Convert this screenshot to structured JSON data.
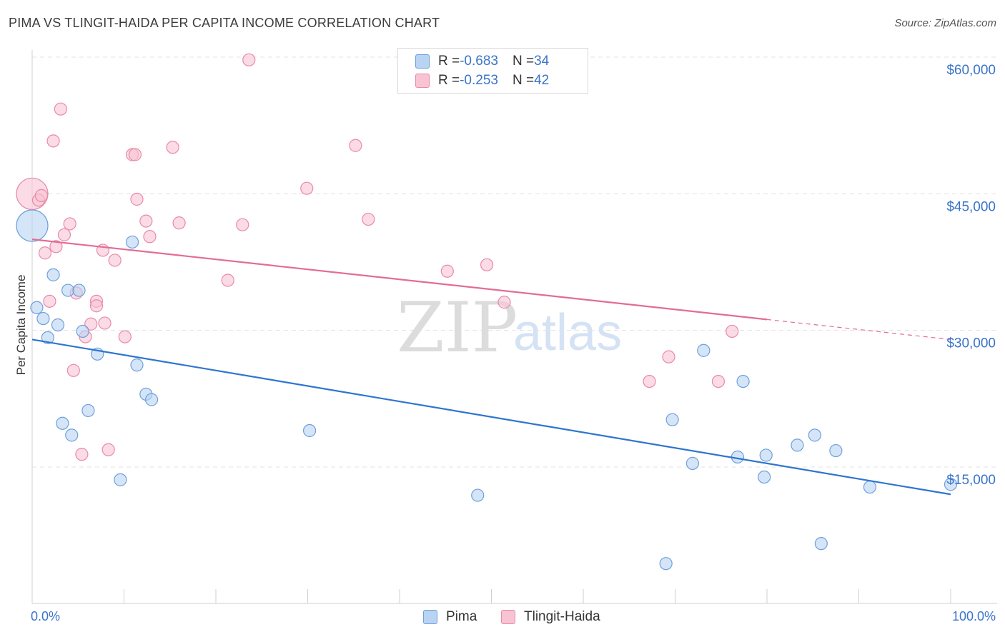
{
  "header": {
    "title": "PIMA VS TLINGIT-HAIDA PER CAPITA INCOME CORRELATION CHART",
    "source": "Source: ZipAtlas.com"
  },
  "legend": {
    "pima": {
      "r_label": "R = ",
      "r_value": "-0.683",
      "n_label": "N = ",
      "n_value": "34"
    },
    "tlingit": {
      "r_label": "R = ",
      "r_value": "-0.253",
      "n_label": "N = ",
      "n_value": "42"
    }
  },
  "bottom_legend": {
    "pima": "Pima",
    "tlingit": "Tlingit-Haida"
  },
  "watermark": {
    "zip": "ZIP",
    "atlas": "atlas"
  },
  "colors": {
    "pima_fill": "#b9d3f3",
    "pima_stroke": "#6e9fdc",
    "pima_line": "#2e74d0",
    "tlingit_fill": "#f8c3d3",
    "tlingit_stroke": "#e98aa8",
    "tlingit_line": "#e36c94",
    "axis_text": "#3a74c9",
    "grid": "#e3e3e3"
  },
  "chart_data": {
    "type": "scatter",
    "title": "PIMA VS TLINGIT-HAIDA PER CAPITA INCOME CORRELATION CHART",
    "xlabel": "",
    "ylabel": "Per Capita Income",
    "xlim": [
      0,
      100
    ],
    "ylim": [
      0,
      62000
    ],
    "x_tick_labels": [
      "0.0%",
      "100.0%"
    ],
    "y_ticks": [
      15000,
      30000,
      45000,
      60000
    ],
    "y_tick_labels": [
      "$15,000",
      "$30,000",
      "$45,000",
      "$60,000"
    ],
    "grid": true,
    "legend_position": "top-center",
    "series": [
      {
        "name": "Pima",
        "points": [
          [
            0,
            41500,
            "big"
          ],
          [
            0.5,
            32500
          ],
          [
            1.2,
            31300
          ],
          [
            1.7,
            29200
          ],
          [
            2.3,
            36100
          ],
          [
            2.8,
            30600
          ],
          [
            3.3,
            19800
          ],
          [
            3.9,
            34400
          ],
          [
            4.3,
            18500
          ],
          [
            5.1,
            34400
          ],
          [
            5.5,
            29900
          ],
          [
            6.1,
            21200
          ],
          [
            7.1,
            27400
          ],
          [
            9.6,
            13600
          ],
          [
            10.9,
            39700
          ],
          [
            11.4,
            26200
          ],
          [
            12.4,
            23000
          ],
          [
            13.0,
            22400
          ],
          [
            30.2,
            19000
          ],
          [
            48.5,
            11900
          ],
          [
            69.0,
            4400
          ],
          [
            69.7,
            20200
          ],
          [
            71.9,
            15400
          ],
          [
            73.1,
            27800
          ],
          [
            76.8,
            16100
          ],
          [
            77.4,
            24400
          ],
          [
            79.7,
            13900
          ],
          [
            79.9,
            16300
          ],
          [
            83.3,
            17400
          ],
          [
            85.2,
            18500
          ],
          [
            85.9,
            6600
          ],
          [
            87.5,
            16800
          ],
          [
            91.2,
            12800
          ],
          [
            100,
            13100
          ]
        ],
        "trend": {
          "x": [
            0,
            100
          ],
          "y": [
            29000,
            12000
          ]
        }
      },
      {
        "name": "Tlingit-Haida",
        "points": [
          [
            0,
            45000,
            "big"
          ],
          [
            0.7,
            44300
          ],
          [
            1.0,
            44800
          ],
          [
            1.4,
            38500
          ],
          [
            1.9,
            33200
          ],
          [
            2.3,
            50800
          ],
          [
            2.6,
            39200
          ],
          [
            3.1,
            54300
          ],
          [
            3.5,
            40500
          ],
          [
            4.1,
            41700
          ],
          [
            4.5,
            25600
          ],
          [
            4.8,
            34100
          ],
          [
            5.4,
            16400
          ],
          [
            5.8,
            29300
          ],
          [
            6.4,
            30700
          ],
          [
            7.0,
            33200
          ],
          [
            7.0,
            32700
          ],
          [
            7.7,
            38800
          ],
          [
            7.9,
            30800
          ],
          [
            8.3,
            16900
          ],
          [
            9.0,
            37700
          ],
          [
            10.1,
            29300
          ],
          [
            10.9,
            49300
          ],
          [
            11.2,
            49300
          ],
          [
            11.4,
            44400
          ],
          [
            12.4,
            42000
          ],
          [
            12.8,
            40300
          ],
          [
            15.3,
            50100
          ],
          [
            16.0,
            41800
          ],
          [
            21.3,
            35500
          ],
          [
            22.9,
            41600
          ],
          [
            23.6,
            59700
          ],
          [
            29.9,
            45600
          ],
          [
            35.2,
            50300
          ],
          [
            36.6,
            42200
          ],
          [
            45.2,
            36500
          ],
          [
            49.5,
            37200
          ],
          [
            51.4,
            33100
          ],
          [
            67.2,
            24400
          ],
          [
            69.3,
            27100
          ],
          [
            74.7,
            24400
          ],
          [
            76.2,
            29900
          ]
        ],
        "trend": {
          "x": [
            0,
            80
          ],
          "y": [
            40000,
            31200
          ]
        },
        "trend_extension": {
          "x": [
            80,
            100
          ],
          "y": [
            31200,
            29000
          ]
        }
      }
    ]
  }
}
